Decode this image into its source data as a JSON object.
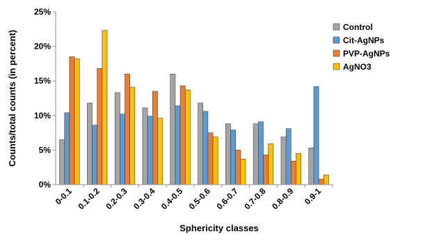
{
  "chart_data": {
    "type": "bar",
    "title": "",
    "xlabel": "Sphericity classes",
    "ylabel": "Counts/total counts (in percent)",
    "ylim": [
      0,
      25
    ],
    "y_ticks": [
      "0%",
      "5%",
      "10%",
      "15%",
      "20%",
      "25%"
    ],
    "y_tick_values": [
      0,
      5,
      10,
      15,
      20,
      25
    ],
    "grid": false,
    "legend_position": "top-right",
    "categories": [
      "0-0.1",
      "0.1-0.2",
      "0.2-0.3",
      "0.3-0.4",
      "0.4-0.5",
      "0.5-0.6",
      "0.6-0.7",
      "0.7-0.8",
      "0.8-0.9",
      "0.9-1"
    ],
    "series": [
      {
        "name": "Control",
        "color": "#a5a5a5",
        "values": [
          6.5,
          11.8,
          13.3,
          11.1,
          16.0,
          11.8,
          8.8,
          8.8,
          6.9,
          5.3
        ]
      },
      {
        "name": "Cit-AgNPs",
        "color": "#5b9bd5",
        "values": [
          10.4,
          8.6,
          10.2,
          9.9,
          11.4,
          10.6,
          7.9,
          9.1,
          8.1,
          14.2
        ]
      },
      {
        "name": "PVP-AgNPs",
        "color": "#ed7d31",
        "values": [
          18.5,
          16.8,
          16.0,
          13.5,
          14.3,
          7.5,
          5.0,
          4.3,
          3.4,
          0.8
        ]
      },
      {
        "name": "AgNO3",
        "color": "#ffc000",
        "values": [
          18.2,
          22.3,
          14.1,
          9.6,
          13.7,
          6.9,
          3.7,
          5.9,
          4.5,
          1.4
        ]
      }
    ]
  }
}
